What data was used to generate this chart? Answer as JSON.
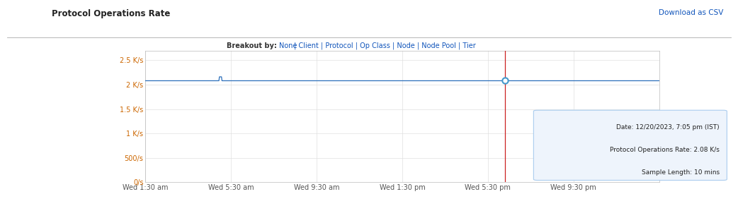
{
  "title": "Protocol Operations Rate",
  "breakout_label": "Breakout by:",
  "breakout_options_none": "None",
  "breakout_options_rest": " | Client | Protocol | Op Class | Node | Node Pool | Tier",
  "download_text": "Download as CSV",
  "ytick_labels": [
    "0/s",
    "500/s",
    "1 K/s",
    "1.5 K/s",
    "2 K/s",
    "2.5 K/s"
  ],
  "ytick_positions": [
    0,
    500,
    1000,
    1500,
    2000,
    2500
  ],
  "xtick_labels": [
    "Wed 1:30 am",
    "Wed 5:30 am",
    "Wed 9:30 am",
    "Wed 1:30 pm",
    "Wed 5:30 pm",
    "Wed 9:30 pm"
  ],
  "xtick_positions": [
    0,
    4,
    8,
    12,
    16,
    20
  ],
  "ylim": [
    0,
    2700
  ],
  "xlim": [
    0,
    24
  ],
  "line_color": "#2a6eba",
  "line_value": 2080,
  "line_spike1_x": 3.5,
  "line_spike1_y": 2160,
  "vline_x": 16.8,
  "vline_color": "#cc2222",
  "marker_x": 16.8,
  "marker_y": 2080,
  "marker_color": "#4499cc",
  "grid_color": "#e0e0e0",
  "bg_color": "#ffffff",
  "plot_bg_color": "#ffffff",
  "ytick_color": "#cc6600",
  "xtick_color": "#555555",
  "title_color": "#222222",
  "download_color": "#1155bb",
  "breakout_label_color": "#333333",
  "breakout_link_color": "#1155bb",
  "tooltip_date": "Date:",
  "tooltip_date_val": " 12/20/2023, 7:05 pm (IST)",
  "tooltip_por": "Protocol Operations Rate:",
  "tooltip_por_val": " 2.08 K/s",
  "tooltip_sl": "Sample Length:",
  "tooltip_sl_val": " 10 mins",
  "tooltip_bg": "#eef4fc",
  "tooltip_border": "#aaccee",
  "sep_line_color": "#aaaaaa"
}
